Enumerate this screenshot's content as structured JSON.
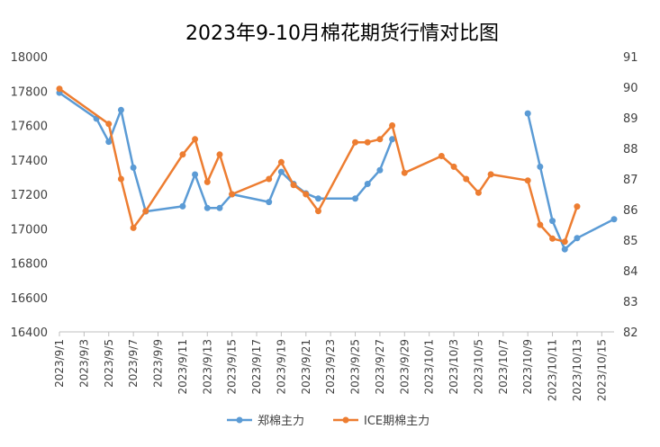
{
  "chart_data": {
    "type": "line",
    "title": "2023年9-10月棉花期货行情对比图",
    "x_tick_labels": [
      "2023/9/1",
      "2023/9/3",
      "2023/9/5",
      "2023/9/7",
      "2023/9/9",
      "2023/9/11",
      "2023/9/13",
      "2023/9/15",
      "2023/9/17",
      "2023/9/19",
      "2023/9/21",
      "2023/9/23",
      "2023/9/25",
      "2023/9/27",
      "2023/9/29",
      "2023/10/1",
      "2023/10/3",
      "2023/10/5",
      "2023/10/7",
      "2023/10/9",
      "2023/10/11",
      "2023/10/13",
      "2023/10/15"
    ],
    "x_range": [
      "2023/9/1",
      "2023/10/16"
    ],
    "y_left": {
      "min": 16400,
      "max": 18000,
      "step": 200
    },
    "y_right": {
      "min": 82,
      "max": 91,
      "step": 1
    },
    "grid": false,
    "legend_position": "bottom",
    "series": [
      {
        "name": "郑棉主力",
        "axis": "left",
        "color": "#5B9BD5",
        "points": [
          [
            "2023/9/1",
            17790
          ],
          [
            "2023/9/4",
            17640
          ],
          [
            "2023/9/5",
            17505
          ],
          [
            "2023/9/6",
            17690
          ],
          [
            "2023/9/7",
            17355
          ],
          [
            "2023/9/8",
            17100
          ],
          [
            "2023/9/11",
            17130
          ],
          [
            "2023/9/12",
            17315
          ],
          [
            "2023/9/13",
            17120
          ],
          [
            "2023/9/14",
            17120
          ],
          [
            "2023/9/15",
            17200
          ],
          [
            "2023/9/18",
            17155
          ],
          [
            "2023/9/19",
            17330
          ],
          [
            "2023/9/20",
            17260
          ],
          [
            "2023/9/21",
            17205
          ],
          [
            "2023/9/22",
            17175
          ],
          [
            "2023/9/25",
            17175
          ],
          [
            "2023/9/26",
            17260
          ],
          [
            "2023/9/27",
            17340
          ],
          [
            "2023/9/28",
            17520
          ],
          [
            null,
            null
          ],
          [
            "2023/10/9",
            17670
          ],
          [
            "2023/10/10",
            17360
          ],
          [
            "2023/10/11",
            17045
          ],
          [
            "2023/10/12",
            16880
          ],
          [
            "2023/10/13",
            16945
          ],
          [
            "2023/10/16",
            17055
          ]
        ]
      },
      {
        "name": "ICE期棉主力",
        "axis": "right",
        "color": "#ED7D31",
        "points": [
          [
            "2023/9/1",
            89.95
          ],
          [
            "2023/9/5",
            88.8
          ],
          [
            "2023/9/6",
            87.0
          ],
          [
            "2023/9/7",
            85.4
          ],
          [
            "2023/9/8",
            85.95
          ],
          [
            "2023/9/11",
            87.8
          ],
          [
            "2023/9/12",
            88.3
          ],
          [
            "2023/9/13",
            86.9
          ],
          [
            "2023/9/14",
            87.8
          ],
          [
            "2023/9/15",
            86.5
          ],
          [
            "2023/9/18",
            87.0
          ],
          [
            "2023/9/19",
            87.55
          ],
          [
            "2023/9/20",
            86.8
          ],
          [
            "2023/9/21",
            86.5
          ],
          [
            "2023/9/22",
            85.95
          ],
          [
            "2023/9/25",
            88.2
          ],
          [
            "2023/9/26",
            88.2
          ],
          [
            "2023/9/27",
            88.3
          ],
          [
            "2023/9/28",
            88.75
          ],
          [
            "2023/9/29",
            87.2
          ],
          [
            "2023/10/2",
            87.75
          ],
          [
            "2023/10/3",
            87.4
          ],
          [
            "2023/10/4",
            87.0
          ],
          [
            "2023/10/5",
            86.55
          ],
          [
            "2023/10/6",
            87.15
          ],
          [
            "2023/10/9",
            86.95
          ],
          [
            "2023/10/10",
            85.5
          ],
          [
            "2023/10/11",
            85.05
          ],
          [
            "2023/10/12",
            84.95
          ],
          [
            "2023/10/13",
            86.1
          ]
        ]
      }
    ]
  }
}
